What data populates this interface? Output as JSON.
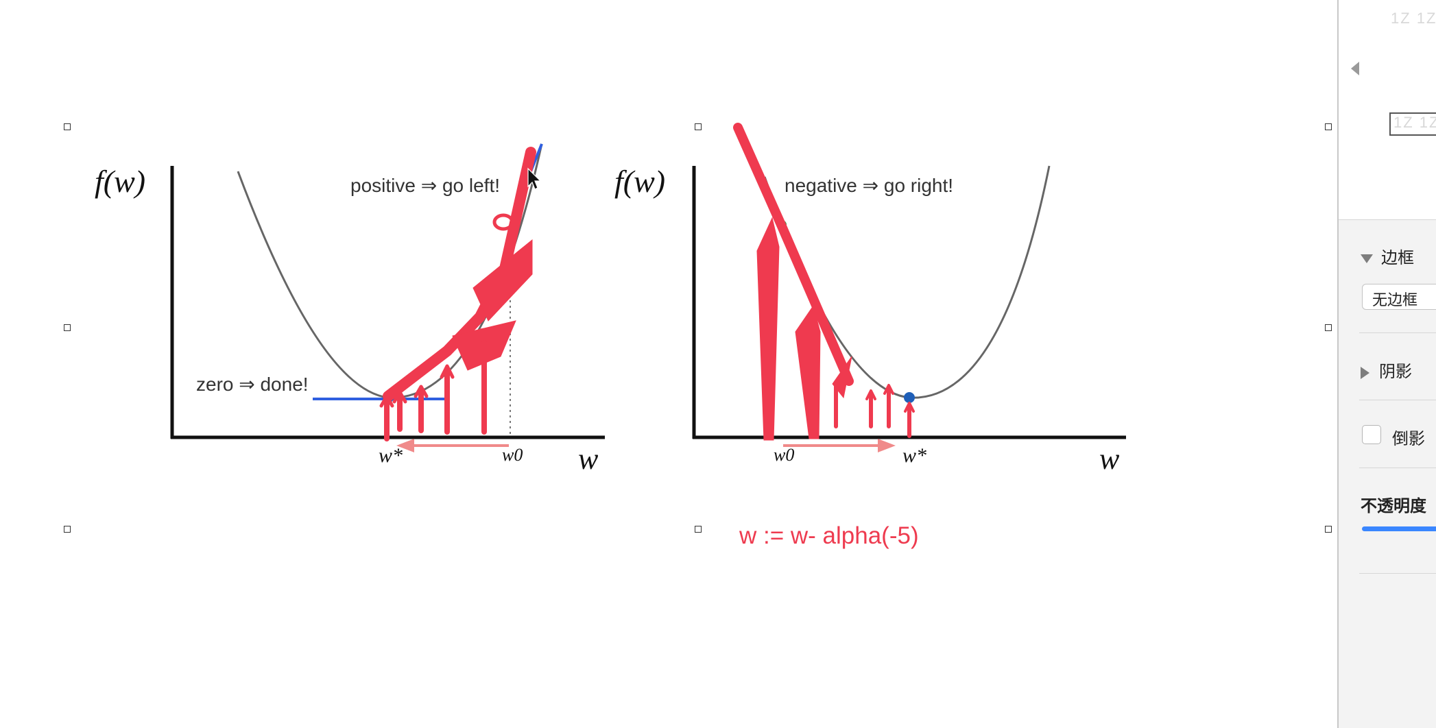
{
  "left_chart": {
    "y_label": "f(w)",
    "x_label": "w",
    "annotation_top": "positive ⇒ go left!",
    "annotation_bottom": "zero ⇒ done!",
    "tick_w0": "w0",
    "tick_wstar": "w*"
  },
  "right_chart": {
    "y_label": "f(w)",
    "x_label": "w",
    "annotation_top": "negative ⇒ go right!",
    "tick_w0": "w0",
    "tick_wstar": "w*"
  },
  "formula": "w := w- alpha(-5)",
  "colors": {
    "ink_red": "#ef3a4f",
    "tangent_blue": "#2f5fe0",
    "point_blue": "#1f5fb8",
    "curve_gray": "#666666"
  },
  "inspector": {
    "thumb_text": "1Z 1Z",
    "border_section_title": "边框",
    "border_value": "无边框",
    "shadow_section_title": "阴影",
    "reflection_label": "倒影",
    "opacity_label": "不透明度"
  }
}
